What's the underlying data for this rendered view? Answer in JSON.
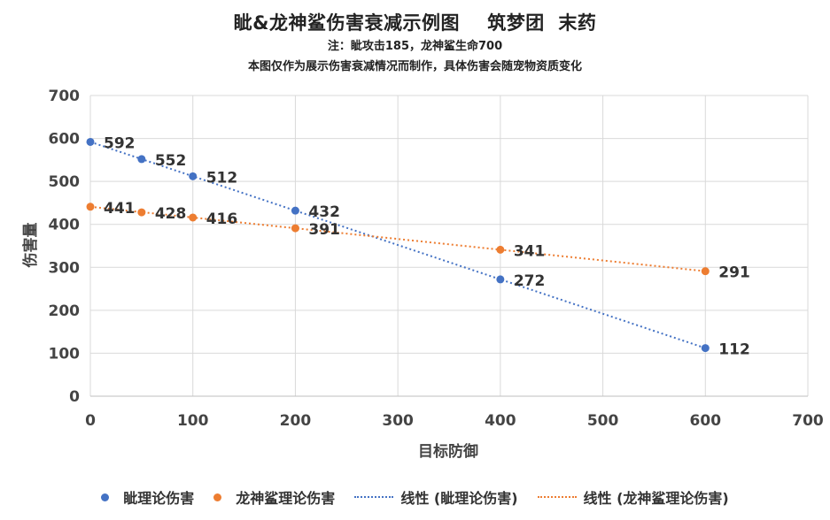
{
  "chart_data": {
    "type": "scatter",
    "title": "眦&龙神鲨伤害衰减示例图    筑梦团  末药",
    "subtitle1": "注：眦攻击185，龙神鲨生命700",
    "subtitle2": "本图仅作为展示伤害衰减情况而制作，具体伤害会随宠物资质变化",
    "xlabel": "目标防御",
    "ylabel": "伤害量",
    "xlim": [
      0,
      700
    ],
    "ylim": [
      0,
      700
    ],
    "xticks": [
      0,
      100,
      200,
      300,
      400,
      500,
      600,
      700
    ],
    "yticks": [
      0,
      100,
      200,
      300,
      400,
      500,
      600,
      700
    ],
    "grid": true,
    "legend_position": "bottom",
    "series": [
      {
        "name": "眦理论伤害",
        "color": "#4472c4",
        "points": [
          {
            "x": 0,
            "y": 592
          },
          {
            "x": 50,
            "y": 552
          },
          {
            "x": 100,
            "y": 512
          },
          {
            "x": 200,
            "y": 432
          },
          {
            "x": 400,
            "y": 272
          },
          {
            "x": 600,
            "y": 112
          }
        ]
      },
      {
        "name": "龙神鲨理论伤害",
        "color": "#ed7d31",
        "points": [
          {
            "x": 0,
            "y": 441
          },
          {
            "x": 50,
            "y": 428
          },
          {
            "x": 100,
            "y": 416
          },
          {
            "x": 200,
            "y": 391
          },
          {
            "x": 400,
            "y": 341
          },
          {
            "x": 600,
            "y": 291
          }
        ]
      }
    ],
    "trendlines": [
      {
        "name": "线性 (眦理论伤害)",
        "color": "#4472c4",
        "from": {
          "x": 0,
          "y": 592
        },
        "to": {
          "x": 600,
          "y": 112
        }
      },
      {
        "name": "线性 (龙神鲨理论伤害)",
        "color": "#ed7d31",
        "from": {
          "x": 0,
          "y": 441
        },
        "to": {
          "x": 600,
          "y": 291
        }
      }
    ]
  }
}
